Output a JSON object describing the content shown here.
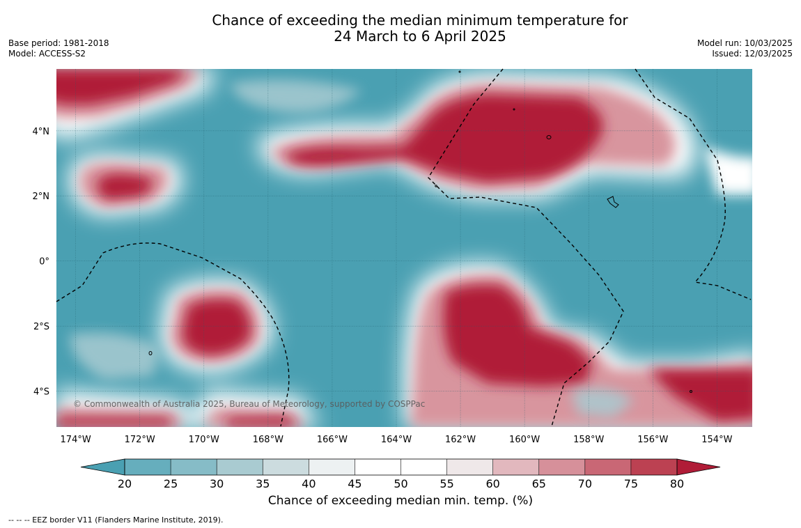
{
  "title": {
    "line1": "Chance of exceeding the median minimum temperature for",
    "line2": "24 March to 6 April 2025"
  },
  "meta_left": {
    "base_period": "Base period: 1981-2018",
    "model": "Model: ACCESS-S2"
  },
  "meta_right": {
    "model_run": "Model run: 10/03/2025",
    "issued": "Issued: 12/03/2025"
  },
  "map": {
    "lon_range": [
      -174.6,
      -152.9
    ],
    "lat_range": [
      -5.1,
      5.9
    ],
    "lon_ticks": [
      "174°W",
      "172°W",
      "170°W",
      "168°W",
      "166°W",
      "164°W",
      "162°W",
      "160°W",
      "158°W",
      "156°W",
      "154°W"
    ],
    "lat_ticks": [
      "4°N",
      "2°N",
      "0°",
      "2°S",
      "4°S"
    ],
    "copyright": "© Commonwealth of Australia 2025, Bureau of Meteorology, supported by COSPPac",
    "background_color": "#4aa0b2"
  },
  "colorbar": {
    "ticks": [
      "20",
      "25",
      "30",
      "35",
      "40",
      "45",
      "50",
      "55",
      "60",
      "65",
      "70",
      "75",
      "80"
    ],
    "colors": [
      "#4aa0b2",
      "#66aebd",
      "#86bcc7",
      "#a9cbd1",
      "#ccdcdf",
      "#edf1f2",
      "#ffffff",
      "#ffffff",
      "#efe8e9",
      "#e2b8be",
      "#d6909a",
      "#c96775",
      "#bc4152",
      "#b01c37"
    ],
    "title": "Chance of exceeding median min. temp. (%)"
  },
  "footer": {
    "legend": "--  --  -- EEZ border V11 (Flanders Marine Institute, 2019)."
  }
}
